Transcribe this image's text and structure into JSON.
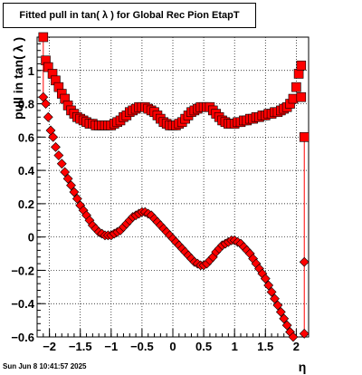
{
  "timestamp": "Sun Jun  8 10:41:57 2025",
  "chart_data": {
    "type": "scatter",
    "title": "Fitted pull in tan( λ ) for Global Rec Pion EtapT",
    "xlabel": "η",
    "ylabel": "pull in tan( λ )",
    "xlim": [
      -2.2,
      2.2
    ],
    "ylim": [
      -0.6,
      1.2
    ],
    "xticks": [
      -2,
      -1.5,
      -1,
      -0.5,
      0,
      0.5,
      1,
      1.5,
      2
    ],
    "xtick_labels": [
      "−2",
      "−1.5",
      "−1",
      "−0.5",
      "0",
      "0.5",
      "1",
      "1.5",
      "2"
    ],
    "yticks": [
      -0.6,
      -0.4,
      -0.2,
      0,
      0.2,
      0.4,
      0.6,
      0.8,
      1.0
    ],
    "ytick_labels": [
      "−0.6",
      "−0.4",
      "−0.2",
      "0",
      "0.2",
      "0.4",
      "0.6",
      "0.8",
      "1"
    ],
    "grid": true,
    "series": [
      {
        "marker": "square",
        "points": [
          {
            "x": -2.1,
            "y": 1.2
          },
          {
            "x": -2.06,
            "y": 1.06
          },
          {
            "x": -2.02,
            "y": 1.02
          },
          {
            "x": -1.95,
            "y": 0.98
          },
          {
            "x": -1.9,
            "y": 0.94
          },
          {
            "x": -1.85,
            "y": 0.9
          },
          {
            "x": -1.8,
            "y": 0.86
          },
          {
            "x": -1.75,
            "y": 0.83
          },
          {
            "x": -1.7,
            "y": 0.79
          },
          {
            "x": -1.65,
            "y": 0.76
          },
          {
            "x": -1.6,
            "y": 0.74
          },
          {
            "x": -1.55,
            "y": 0.72
          },
          {
            "x": -1.5,
            "y": 0.71
          },
          {
            "x": -1.45,
            "y": 0.7
          },
          {
            "x": -1.4,
            "y": 0.69
          },
          {
            "x": -1.35,
            "y": 0.68
          },
          {
            "x": -1.3,
            "y": 0.68
          },
          {
            "x": -1.25,
            "y": 0.67
          },
          {
            "x": -1.2,
            "y": 0.67
          },
          {
            "x": -1.15,
            "y": 0.67
          },
          {
            "x": -1.1,
            "y": 0.67
          },
          {
            "x": -1.05,
            "y": 0.67
          },
          {
            "x": -1.0,
            "y": 0.67
          },
          {
            "x": -0.95,
            "y": 0.68
          },
          {
            "x": -0.9,
            "y": 0.69
          },
          {
            "x": -0.85,
            "y": 0.7
          },
          {
            "x": -0.8,
            "y": 0.72
          },
          {
            "x": -0.75,
            "y": 0.73
          },
          {
            "x": -0.7,
            "y": 0.75
          },
          {
            "x": -0.65,
            "y": 0.76
          },
          {
            "x": -0.6,
            "y": 0.77
          },
          {
            "x": -0.55,
            "y": 0.78
          },
          {
            "x": -0.5,
            "y": 0.78
          },
          {
            "x": -0.45,
            "y": 0.78
          },
          {
            "x": -0.4,
            "y": 0.77
          },
          {
            "x": -0.35,
            "y": 0.76
          },
          {
            "x": -0.3,
            "y": 0.75
          },
          {
            "x": -0.25,
            "y": 0.73
          },
          {
            "x": -0.2,
            "y": 0.71
          },
          {
            "x": -0.15,
            "y": 0.69
          },
          {
            "x": -0.1,
            "y": 0.68
          },
          {
            "x": -0.05,
            "y": 0.67
          },
          {
            "x": 0.0,
            "y": 0.67
          },
          {
            "x": 0.05,
            "y": 0.67
          },
          {
            "x": 0.1,
            "y": 0.68
          },
          {
            "x": 0.15,
            "y": 0.69
          },
          {
            "x": 0.2,
            "y": 0.71
          },
          {
            "x": 0.25,
            "y": 0.73
          },
          {
            "x": 0.3,
            "y": 0.75
          },
          {
            "x": 0.35,
            "y": 0.76
          },
          {
            "x": 0.4,
            "y": 0.77
          },
          {
            "x": 0.45,
            "y": 0.78
          },
          {
            "x": 0.5,
            "y": 0.78
          },
          {
            "x": 0.55,
            "y": 0.78
          },
          {
            "x": 0.6,
            "y": 0.78
          },
          {
            "x": 0.65,
            "y": 0.76
          },
          {
            "x": 0.7,
            "y": 0.74
          },
          {
            "x": 0.75,
            "y": 0.72
          },
          {
            "x": 0.8,
            "y": 0.7
          },
          {
            "x": 0.85,
            "y": 0.69
          },
          {
            "x": 0.9,
            "y": 0.68
          },
          {
            "x": 0.95,
            "y": 0.68
          },
          {
            "x": 1.0,
            "y": 0.68
          },
          {
            "x": 1.05,
            "y": 0.69
          },
          {
            "x": 1.1,
            "y": 0.69
          },
          {
            "x": 1.15,
            "y": 0.7
          },
          {
            "x": 1.2,
            "y": 0.7
          },
          {
            "x": 1.25,
            "y": 0.71
          },
          {
            "x": 1.3,
            "y": 0.71
          },
          {
            "x": 1.35,
            "y": 0.72
          },
          {
            "x": 1.4,
            "y": 0.72
          },
          {
            "x": 1.45,
            "y": 0.73
          },
          {
            "x": 1.5,
            "y": 0.73
          },
          {
            "x": 1.55,
            "y": 0.74
          },
          {
            "x": 1.6,
            "y": 0.74
          },
          {
            "x": 1.65,
            "y": 0.75
          },
          {
            "x": 1.7,
            "y": 0.75
          },
          {
            "x": 1.75,
            "y": 0.76
          },
          {
            "x": 1.8,
            "y": 0.77
          },
          {
            "x": 1.85,
            "y": 0.78
          },
          {
            "x": 1.9,
            "y": 0.8
          },
          {
            "x": 1.95,
            "y": 0.83
          },
          {
            "x": 2.0,
            "y": 0.9
          },
          {
            "x": 2.04,
            "y": 0.98
          },
          {
            "x": 2.08,
            "y": 1.03
          },
          {
            "x": 2.08,
            "y": 0.84
          },
          {
            "x": 2.13,
            "y": 0.6
          }
        ]
      },
      {
        "marker": "diamond",
        "points": [
          {
            "x": -2.1,
            "y": 0.84
          },
          {
            "x": -2.06,
            "y": 0.8
          },
          {
            "x": -2.02,
            "y": 0.72
          },
          {
            "x": -1.98,
            "y": 0.64
          },
          {
            "x": -1.94,
            "y": 0.6
          },
          {
            "x": -1.9,
            "y": 0.54
          },
          {
            "x": -1.85,
            "y": 0.49
          },
          {
            "x": -1.8,
            "y": 0.44
          },
          {
            "x": -1.75,
            "y": 0.39
          },
          {
            "x": -1.7,
            "y": 0.35
          },
          {
            "x": -1.65,
            "y": 0.31
          },
          {
            "x": -1.6,
            "y": 0.27
          },
          {
            "x": -1.55,
            "y": 0.23
          },
          {
            "x": -1.5,
            "y": 0.19
          },
          {
            "x": -1.45,
            "y": 0.16
          },
          {
            "x": -1.4,
            "y": 0.13
          },
          {
            "x": -1.35,
            "y": 0.1
          },
          {
            "x": -1.3,
            "y": 0.07
          },
          {
            "x": -1.25,
            "y": 0.05
          },
          {
            "x": -1.2,
            "y": 0.03
          },
          {
            "x": -1.15,
            "y": 0.02
          },
          {
            "x": -1.1,
            "y": 0.01
          },
          {
            "x": -1.05,
            "y": 0.01
          },
          {
            "x": -1.0,
            "y": 0.01
          },
          {
            "x": -0.95,
            "y": 0.02
          },
          {
            "x": -0.9,
            "y": 0.03
          },
          {
            "x": -0.85,
            "y": 0.04
          },
          {
            "x": -0.8,
            "y": 0.06
          },
          {
            "x": -0.75,
            "y": 0.08
          },
          {
            "x": -0.7,
            "y": 0.1
          },
          {
            "x": -0.65,
            "y": 0.12
          },
          {
            "x": -0.6,
            "y": 0.13
          },
          {
            "x": -0.55,
            "y": 0.14
          },
          {
            "x": -0.5,
            "y": 0.15
          },
          {
            "x": -0.45,
            "y": 0.15
          },
          {
            "x": -0.4,
            "y": 0.14
          },
          {
            "x": -0.35,
            "y": 0.13
          },
          {
            "x": -0.3,
            "y": 0.11
          },
          {
            "x": -0.25,
            "y": 0.09
          },
          {
            "x": -0.2,
            "y": 0.07
          },
          {
            "x": -0.15,
            "y": 0.05
          },
          {
            "x": -0.1,
            "y": 0.03
          },
          {
            "x": -0.05,
            "y": 0.01
          },
          {
            "x": 0.0,
            "y": -0.01
          },
          {
            "x": 0.05,
            "y": -0.03
          },
          {
            "x": 0.1,
            "y": -0.05
          },
          {
            "x": 0.15,
            "y": -0.07
          },
          {
            "x": 0.2,
            "y": -0.09
          },
          {
            "x": 0.25,
            "y": -0.11
          },
          {
            "x": 0.3,
            "y": -0.13
          },
          {
            "x": 0.35,
            "y": -0.15
          },
          {
            "x": 0.4,
            "y": -0.16
          },
          {
            "x": 0.45,
            "y": -0.17
          },
          {
            "x": 0.5,
            "y": -0.17
          },
          {
            "x": 0.55,
            "y": -0.16
          },
          {
            "x": 0.6,
            "y": -0.14
          },
          {
            "x": 0.65,
            "y": -0.12
          },
          {
            "x": 0.7,
            "y": -0.09
          },
          {
            "x": 0.75,
            "y": -0.07
          },
          {
            "x": 0.8,
            "y": -0.05
          },
          {
            "x": 0.85,
            "y": -0.04
          },
          {
            "x": 0.9,
            "y": -0.03
          },
          {
            "x": 0.95,
            "y": -0.02
          },
          {
            "x": 1.0,
            "y": -0.02
          },
          {
            "x": 1.05,
            "y": -0.03
          },
          {
            "x": 1.1,
            "y": -0.04
          },
          {
            "x": 1.15,
            "y": -0.06
          },
          {
            "x": 1.2,
            "y": -0.08
          },
          {
            "x": 1.25,
            "y": -0.1
          },
          {
            "x": 1.3,
            "y": -0.13
          },
          {
            "x": 1.35,
            "y": -0.16
          },
          {
            "x": 1.4,
            "y": -0.19
          },
          {
            "x": 1.45,
            "y": -0.22
          },
          {
            "x": 1.5,
            "y": -0.25
          },
          {
            "x": 1.55,
            "y": -0.29
          },
          {
            "x": 1.6,
            "y": -0.33
          },
          {
            "x": 1.65,
            "y": -0.37
          },
          {
            "x": 1.7,
            "y": -0.41
          },
          {
            "x": 1.75,
            "y": -0.45
          },
          {
            "x": 1.8,
            "y": -0.49
          },
          {
            "x": 1.85,
            "y": -0.53
          },
          {
            "x": 1.9,
            "y": -0.57
          },
          {
            "x": 1.95,
            "y": -0.6
          },
          {
            "x": 2.13,
            "y": -0.15
          },
          {
            "x": 2.13,
            "y": -0.58
          }
        ]
      }
    ]
  },
  "colors": {
    "marker_fill": "#ff0000",
    "marker_outline": "#000000",
    "grid": "#000000",
    "axis": "#000000"
  }
}
